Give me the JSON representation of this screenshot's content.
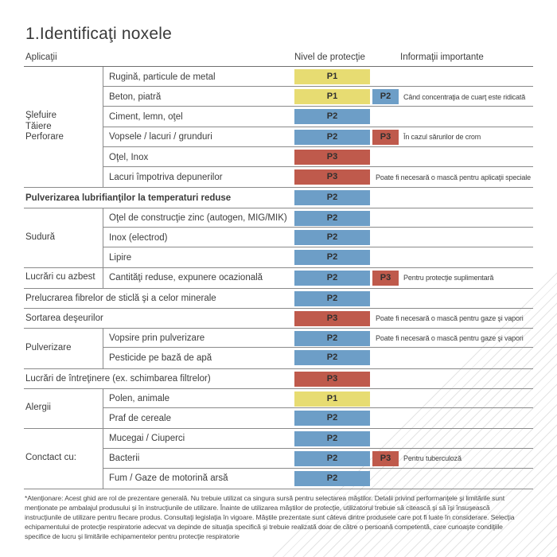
{
  "page": {
    "title": "1.Identificaţi noxele",
    "columns": {
      "applications": "Aplicaţii",
      "protection": "Nivel de protecţie",
      "info": "Informaţii importante"
    },
    "footnote": "*Atenţionare: Acest ghid are rol de prezentare generală. Nu trebuie utilizat ca singura sursă pentru selectarea măştilor. Detalii privind performanţele şi limitările sunt menţionate pe ambalajul produsului şi în instrucţiunile de utilizare. Înainte de utilizarea măştilor de protecţie, utilizatorul trebuie să citească şi să îşi însuşească instrucţiunile de utilizare pentru fiecare produs. Consultaţi legislaţia în vigoare. Măştile prezentate sunt câteva dintre produsele care pot fi luate în considerare. Selecţia echipamentului de protecţie respiratorie adecvat va depinde de situaţia specifică şi trebuie realizată doar de către o persoană competentă, care cunoaşte condiţiile specifice de lucru şi limitările echipamentelor pentru protecţie respiratorie"
  },
  "badge_colors": {
    "P1": "#e7dc72",
    "P2": "#6d9ec7",
    "P3": "#bf5a4c"
  },
  "rows": [
    {
      "category": "Şlefuire\nTăiere\nPerforare",
      "span": 6,
      "label": "Rugină, particule de metal",
      "badge": "P1"
    },
    {
      "label": "Beton, piatră",
      "badge": "P1",
      "badge2": "P2",
      "note": "Când concentraţia de cuarţ este ridicată"
    },
    {
      "label": "Ciment, lemn, oţel",
      "badge": "P2"
    },
    {
      "label": "Vopsele / lacuri / grunduri",
      "badge": "P2",
      "badge2": "P3",
      "note": "În cazul sărurilor de crom"
    },
    {
      "label": "Oţel, Inox",
      "badge": "P3"
    },
    {
      "label": "Lacuri împotriva depunerilor",
      "badge": "P3",
      "note": "Poate fi necesară o mască pentru aplicaţii speciale"
    },
    {
      "label": "Pulverizarea lubrifianţilor la temperaturi reduse",
      "full": true,
      "bold": true,
      "badge": "P2"
    },
    {
      "category": "Sudură",
      "span": 3,
      "label": "Oţel de construcţie zinc (autogen, MIG/MIK)",
      "badge": "P2"
    },
    {
      "label": "Inox (electrod)",
      "badge": "P2"
    },
    {
      "label": "Lipire",
      "badge": "P2"
    },
    {
      "category": "Lucrări cu azbest",
      "span": 1,
      "label": "Cantităţi reduse, expunere ocazională",
      "badge": "P2",
      "badge2": "P3",
      "note": "Pentru protecţie suplimentară"
    },
    {
      "label": "Prelucrarea fibrelor de sticlă şi a celor minerale",
      "full": true,
      "badge": "P2"
    },
    {
      "label": "Sortarea deşeurilor",
      "full": true,
      "badge": "P3",
      "note": "Poate fi necesară o mască pentru gaze şi vapori"
    },
    {
      "category": "Pulverizare",
      "span": 2,
      "label": "Vopsire prin pulverizare",
      "badge": "P2",
      "note": "Poate fi necesară o mască pentru gaze şi vapori"
    },
    {
      "label": "Pesticide pe bază de apă",
      "badge": "P2"
    },
    {
      "label": "Lucrări de întreţinere (ex. schimbarea filtrelor)",
      "full": true,
      "badge": "P3"
    },
    {
      "category": "Alergii",
      "span": 2,
      "label": "Polen, animale",
      "badge": "P1"
    },
    {
      "label": "Praf de cereale",
      "badge": "P2"
    },
    {
      "category": "Conctact cu:",
      "span": 3,
      "label": "Mucegai / Ciuperci",
      "badge": "P2"
    },
    {
      "label": "Bacterii",
      "badge": "P2",
      "badge2": "P3",
      "note": "Pentru tuberculoză"
    },
    {
      "label": "Fum / Gaze de motorină arsă",
      "badge": "P2"
    }
  ]
}
